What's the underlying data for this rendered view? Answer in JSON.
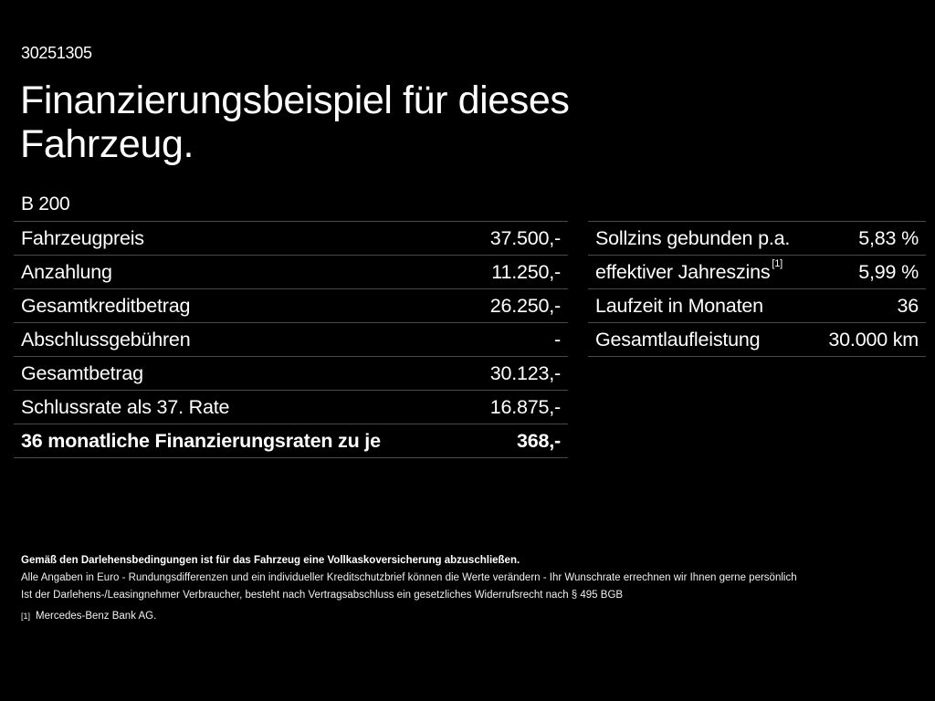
{
  "header": {
    "id_code": "30251305",
    "title_line1": "Finanzierungsbeispiel für dieses",
    "title_line2": "Fahrzeug.",
    "model": "B 200"
  },
  "left_table": {
    "rows": [
      {
        "label": "Fahrzeugpreis",
        "value": "37.500,-"
      },
      {
        "label": "Anzahlung",
        "value": "11.250,-"
      },
      {
        "label": "Gesamtkreditbetrag",
        "value": "26.250,-"
      },
      {
        "label": "Abschlussgebühren",
        "value": "-"
      },
      {
        "label": "Gesamtbetrag",
        "value": "30.123,-"
      },
      {
        "label": "Schlussrate als 37. Rate",
        "value": "16.875,-"
      },
      {
        "label": "36 monatliche Finanzierungsraten zu je",
        "value": "368,-",
        "bold": true
      }
    ]
  },
  "right_table": {
    "rows": [
      {
        "label": "Sollzins gebunden p.a.",
        "value": "5,83 %"
      },
      {
        "label": "effektiver Jahreszins",
        "footnote": "[1]",
        "value": "5,99 %"
      },
      {
        "label": "Laufzeit in Monaten",
        "value": "36"
      },
      {
        "label": "Gesamtlaufleistung",
        "value": "30.000 km"
      }
    ]
  },
  "notes": {
    "bold_line": "Gemäß den Darlehensbedingungen ist für das Fahrzeug eine Vollkaskoversicherung abzuschließen.",
    "line2": "Alle Angaben in Euro - Rundungsdifferenzen und ein individueller Kreditschutzbrief können die Werte verändern - Ihr Wunschrate errechnen wir Ihnen gerne persönlich",
    "line3": "Ist der Darlehens-/Leasingnehmer Verbraucher, besteht nach Vertragsabschluss ein gesetzliches Widerrufsrecht nach § 495 BGB",
    "footnote_mark": "[1]",
    "footnote_text": "Mercedes-Benz Bank AG."
  },
  "colors": {
    "background": "#000000",
    "text": "#ffffff",
    "divider": "#4a4a4a"
  }
}
